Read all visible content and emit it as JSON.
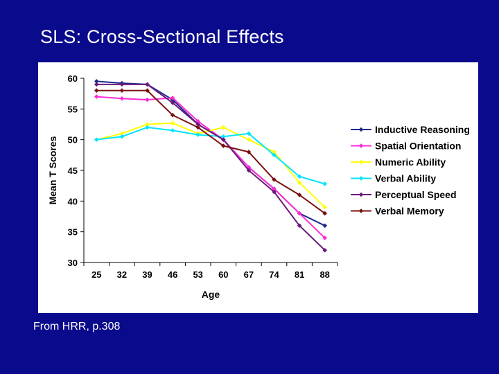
{
  "slide": {
    "title": "SLS:  Cross-Sectional Effects",
    "footnote": "From HRR, p.308"
  },
  "chart_data": {
    "type": "line",
    "title": "",
    "xlabel": "Age",
    "ylabel": "Mean T Scores",
    "categories": [
      "25",
      "32",
      "39",
      "46",
      "53",
      "60",
      "67",
      "74",
      "81",
      "88"
    ],
    "ylim": [
      30,
      60
    ],
    "yticks": [
      30,
      35,
      40,
      45,
      50,
      55,
      60
    ],
    "grid": false,
    "legend_position": "right",
    "series": [
      {
        "name": "Inductive Reasoning",
        "color": "#1a2a8c",
        "values": [
          59.5,
          59.2,
          59.0,
          56.5,
          52.5,
          50.0,
          45.5,
          42.0,
          38.0,
          36.0
        ]
      },
      {
        "name": "Spatial Orientation",
        "color": "#ff2bd6",
        "values": [
          57.0,
          56.7,
          56.5,
          56.8,
          53.0,
          50.0,
          45.5,
          42.0,
          38.0,
          34.0
        ]
      },
      {
        "name": "Numeric Ability",
        "color": "#ffff00",
        "values": [
          50.0,
          51.0,
          52.5,
          52.7,
          51.0,
          52.0,
          50.0,
          48.0,
          43.0,
          39.0
        ]
      },
      {
        "name": "Verbal Ability",
        "color": "#00e5ff",
        "values": [
          50.0,
          50.5,
          52.0,
          51.5,
          50.8,
          50.5,
          51.0,
          47.5,
          44.0,
          42.8
        ]
      },
      {
        "name": "Perceptual Speed",
        "color": "#6a1a7a",
        "values": [
          59.0,
          59.0,
          59.0,
          56.0,
          52.5,
          50.0,
          45.0,
          41.5,
          36.0,
          32.0
        ]
      },
      {
        "name": "Verbal Memory",
        "color": "#7a1010",
        "values": [
          58.0,
          58.0,
          58.0,
          54.0,
          52.0,
          49.0,
          48.0,
          43.5,
          41.0,
          38.0
        ]
      }
    ]
  }
}
